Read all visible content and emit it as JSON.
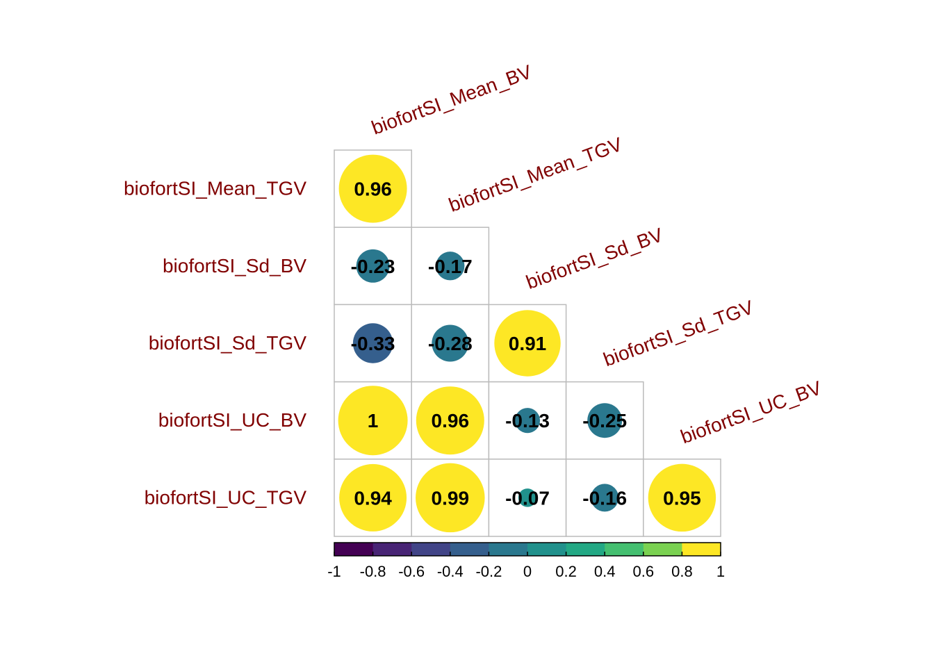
{
  "chart_data": {
    "type": "heatmap",
    "subtype": "correlation-circle-lower-triangle",
    "variables": [
      "biofortSI_Mean_BV",
      "biofortSI_Mean_TGV",
      "biofortSI_Sd_BV",
      "biofortSI_Sd_TGV",
      "biofortSI_UC_BV",
      "biofortSI_UC_TGV"
    ],
    "row_labels": [
      "biofortSI_Mean_TGV",
      "biofortSI_Sd_BV",
      "biofortSI_Sd_TGV",
      "biofortSI_UC_BV",
      "biofortSI_UC_TGV"
    ],
    "col_labels": [
      "biofortSI_Mean_BV",
      "biofortSI_Mean_TGV",
      "biofortSI_Sd_BV",
      "biofortSI_Sd_TGV",
      "biofortSI_UC_BV"
    ],
    "matrix": [
      [
        0.96
      ],
      [
        -0.23,
        -0.17
      ],
      [
        -0.33,
        -0.28,
        0.91
      ],
      [
        1,
        0.96,
        -0.13,
        -0.25
      ],
      [
        0.94,
        0.99,
        -0.07,
        -0.16,
        0.95
      ]
    ],
    "matrix_labels": [
      [
        "0.96"
      ],
      [
        "-0.23",
        "-0.17"
      ],
      [
        "-0.33",
        "-0.28",
        "0.91"
      ],
      [
        "1",
        "0.96",
        "-0.13",
        "-0.25"
      ],
      [
        "0.94",
        "0.99",
        "-0.07",
        "-0.16",
        "0.95"
      ]
    ],
    "color_range": [
      -1,
      1
    ],
    "colorbar": {
      "ticks": [
        "-1",
        "-0.8",
        "-0.6",
        "-0.4",
        "-0.2",
        "0",
        "0.2",
        "0.4",
        "0.6",
        "0.8",
        "1"
      ],
      "colors": [
        "#440154",
        "#482475",
        "#414487",
        "#355f8d",
        "#2a788e",
        "#21918c",
        "#22a884",
        "#44bf70",
        "#7ad151",
        "#bddf26",
        "#fde725"
      ]
    },
    "label_color": "#800000",
    "grid_color": "#bbbbbb"
  }
}
